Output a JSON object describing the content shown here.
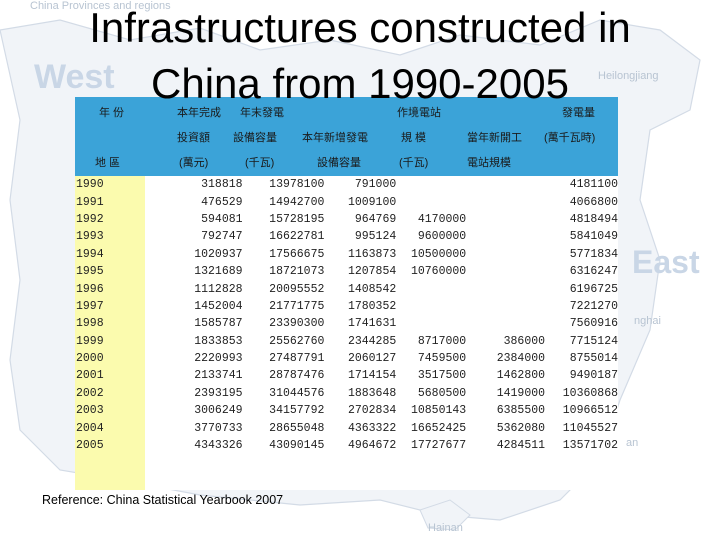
{
  "slide": {
    "title_line1": "Infrastructures constructed in",
    "title_line2": "China from 1990-2005",
    "reference": "Reference: China Statistical Yearbook 2007"
  },
  "background": {
    "map_caption": "China Provinces and regions",
    "west": "West",
    "east": "East",
    "heilongjiang": "Heilongjiang",
    "shanghai": "nghai",
    "partial_label": "an",
    "hainan": "Hainan"
  },
  "table": {
    "header_cells": [
      "年 份",
      "本年完成",
      "年末發電",
      "作境電站",
      "發電量",
      "投資額",
      "設備容量",
      "本年新增發電",
      "規 模",
      "當年新開工",
      "(萬千瓦時)",
      "地 區",
      "(萬元)",
      "(千瓦)",
      "設備容量",
      "(千瓦)",
      "電站規模"
    ],
    "rows": [
      [
        "1990",
        "318818",
        "13978100",
        "791000",
        "",
        "",
        "4181100"
      ],
      [
        "1991",
        "476529",
        "14942700",
        "1009100",
        "",
        "",
        "4066800"
      ],
      [
        "1992",
        "594081",
        "15728195",
        "964769",
        "4170000",
        "",
        "4818494"
      ],
      [
        "1993",
        "792747",
        "16622781",
        "995124",
        "9600000",
        "",
        "5841049"
      ],
      [
        "1994",
        "1020937",
        "17566675",
        "1163873",
        "10500000",
        "",
        "5771834"
      ],
      [
        "1995",
        "1321689",
        "18721073",
        "1207854",
        "10760000",
        "",
        "6316247"
      ],
      [
        "1996",
        "1112828",
        "20095552",
        "1408542",
        "",
        "",
        "6196725"
      ],
      [
        "1997",
        "1452004",
        "21771775",
        "1780352",
        "",
        "",
        "7221270"
      ],
      [
        "1998",
        "1585787",
        "23390300",
        "1741631",
        "",
        "",
        "7560916"
      ],
      [
        "1999",
        "1833853",
        "25562760",
        "2344285",
        "8717000",
        "386000",
        "7715124"
      ],
      [
        "2000",
        "2220993",
        "27487791",
        "2060127",
        "7459500",
        "2384000",
        "8755014"
      ],
      [
        "2001",
        "2133741",
        "28787476",
        "1714154",
        "3517500",
        "1462800",
        "9490187"
      ],
      [
        "2002",
        "2393195",
        "31044576",
        "1883648",
        "5680500",
        "1419000",
        "10360868"
      ],
      [
        "2003",
        "3006249",
        "34157792",
        "2702834",
        "10850143",
        "6385500",
        "10966512"
      ],
      [
        "2004",
        "3770733",
        "28655048",
        "4363322",
        "16652425",
        "5362080",
        "11045527"
      ],
      [
        "2005",
        "4343326",
        "43090145",
        "4964672",
        "17727677",
        "4284511",
        "13571702"
      ]
    ]
  }
}
